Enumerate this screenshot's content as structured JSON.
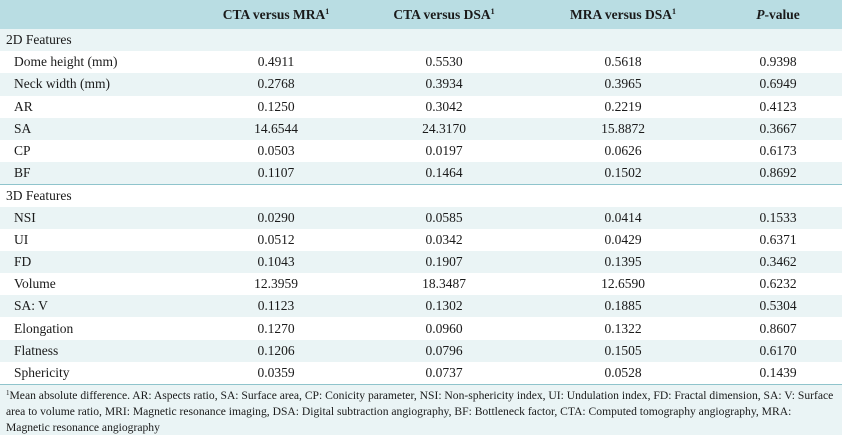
{
  "header": {
    "col0": "",
    "col1": "CTA versus MRA",
    "col2": "CTA versus DSA",
    "col3": "MRA versus DSA",
    "col4_italic": "P",
    "col4_rest": "-value",
    "sup": "1"
  },
  "sections": [
    {
      "title": "2D Features",
      "rows": [
        {
          "feature": "Dome height (mm)",
          "cta_mra": "0.4911",
          "cta_dsa": "0.5530",
          "mra_dsa": "0.5618",
          "p": "0.9398"
        },
        {
          "feature": "Neck width (mm)",
          "cta_mra": "0.2768",
          "cta_dsa": "0.3934",
          "mra_dsa": "0.3965",
          "p": "0.6949"
        },
        {
          "feature": "AR",
          "cta_mra": "0.1250",
          "cta_dsa": "0.3042",
          "mra_dsa": "0.2219",
          "p": "0.4123"
        },
        {
          "feature": "SA",
          "cta_mra": "14.6544",
          "cta_dsa": "24.3170",
          "mra_dsa": "15.8872",
          "p": "0.3667"
        },
        {
          "feature": "CP",
          "cta_mra": "0.0503",
          "cta_dsa": "0.0197",
          "mra_dsa": "0.0626",
          "p": "0.6173"
        },
        {
          "feature": "BF",
          "cta_mra": "0.1107",
          "cta_dsa": "0.1464",
          "mra_dsa": "0.1502",
          "p": "0.8692"
        }
      ]
    },
    {
      "title": "3D Features",
      "rows": [
        {
          "feature": "NSI",
          "cta_mra": "0.0290",
          "cta_dsa": "0.0585",
          "mra_dsa": "0.0414",
          "p": "0.1533"
        },
        {
          "feature": "UI",
          "cta_mra": "0.0512",
          "cta_dsa": "0.0342",
          "mra_dsa": "0.0429",
          "p": "0.6371"
        },
        {
          "feature": "FD",
          "cta_mra": "0.1043",
          "cta_dsa": "0.1907",
          "mra_dsa": "0.1395",
          "p": "0.3462"
        },
        {
          "feature": "Volume",
          "cta_mra": "12.3959",
          "cta_dsa": "18.3487",
          "mra_dsa": "12.6590",
          "p": "0.6232"
        },
        {
          "feature": "SA: V",
          "cta_mra": "0.1123",
          "cta_dsa": "0.1302",
          "mra_dsa": "0.1885",
          "p": "0.5304"
        },
        {
          "feature": "Elongation",
          "cta_mra": "0.1270",
          "cta_dsa": "0.0960",
          "mra_dsa": "0.1322",
          "p": "0.8607"
        },
        {
          "feature": "Flatness",
          "cta_mra": "0.1206",
          "cta_dsa": "0.0796",
          "mra_dsa": "0.1505",
          "p": "0.6170"
        },
        {
          "feature": "Sphericity",
          "cta_mra": "0.0359",
          "cta_dsa": "0.0737",
          "mra_dsa": "0.0528",
          "p": "0.1439"
        }
      ]
    }
  ],
  "footnote": {
    "sup": "1",
    "text": "Mean absolute difference. AR: Aspects ratio, SA: Surface area, CP: Conicity parameter, NSI: Non-sphericity index, UI: Undulation index, FD: Fractal dimension, SA: V: Surface area to volume ratio, MRI: Magnetic resonance imaging, DSA: Digital subtraction angiography, BF: Bottleneck factor, CTA: Computed tomography angiography, MRA: Magnetic resonance angiography"
  },
  "colors": {
    "header_bg": "#b9dde3",
    "stripe_bg": "#eaf4f5",
    "rule": "#8fc4cc"
  }
}
